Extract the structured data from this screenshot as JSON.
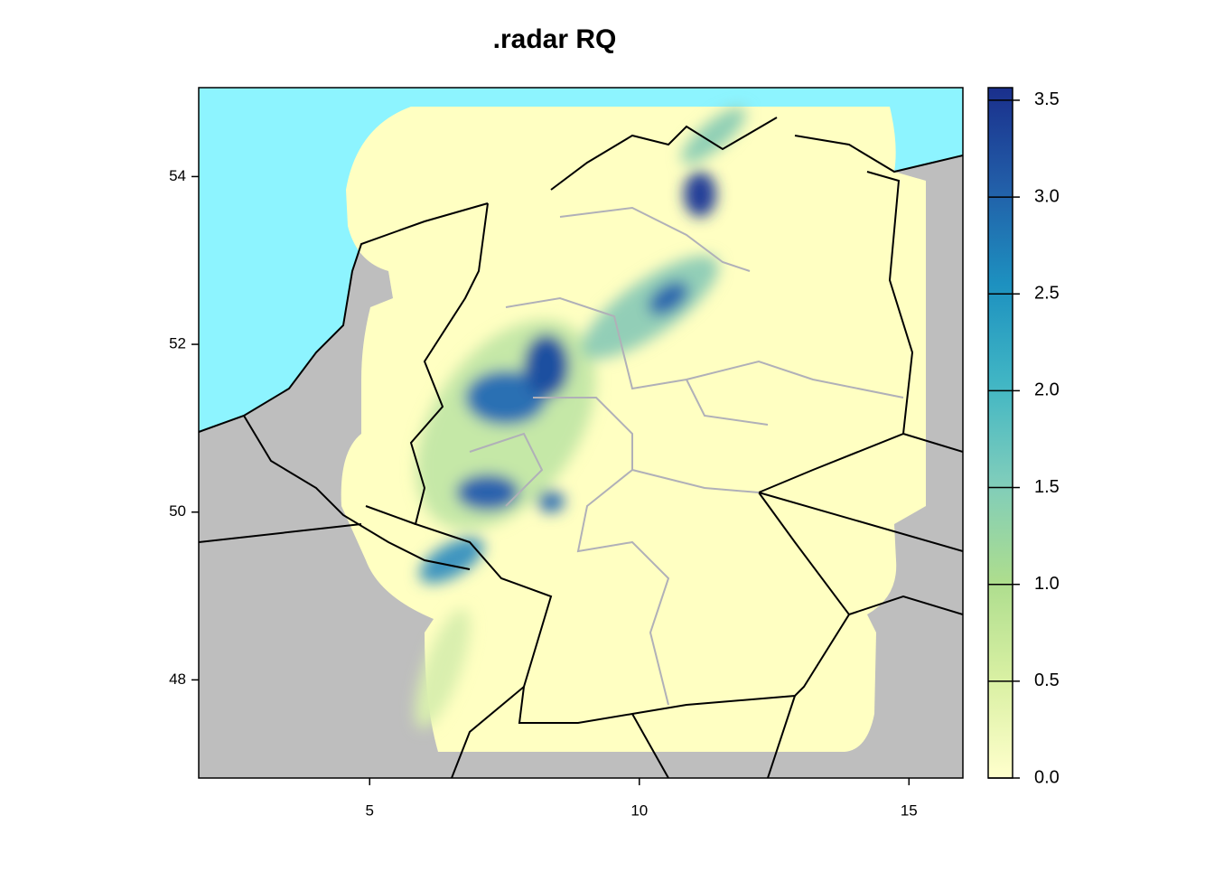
{
  "chart_data": {
    "type": "raster-map",
    "title": ".radar RQ",
    "xlim": [
      1.83,
      16.0
    ],
    "xticks": [
      5,
      10,
      15
    ],
    "ylim": [
      46.83,
      55.06
    ],
    "yticks": [
      48,
      50,
      52,
      54
    ],
    "colorbar": {
      "zlim": [
        0,
        3.565
      ],
      "ticks": [
        {
          "value": 0,
          "label": "0.0"
        },
        0.5,
        {
          "value": 1,
          "label": "1.0"
        },
        1.5,
        {
          "value": 2,
          "label": "2.0"
        },
        2.5,
        {
          "value": 3,
          "label": "3.0"
        },
        3.5
      ],
      "colors": [
        "#ffffcc",
        "#d9f0a3",
        "#addd8e",
        "#7fcdbb",
        "#41b6c4",
        "#1d91c0",
        "#225ea8",
        "#1a2f8c"
      ]
    }
  }
}
